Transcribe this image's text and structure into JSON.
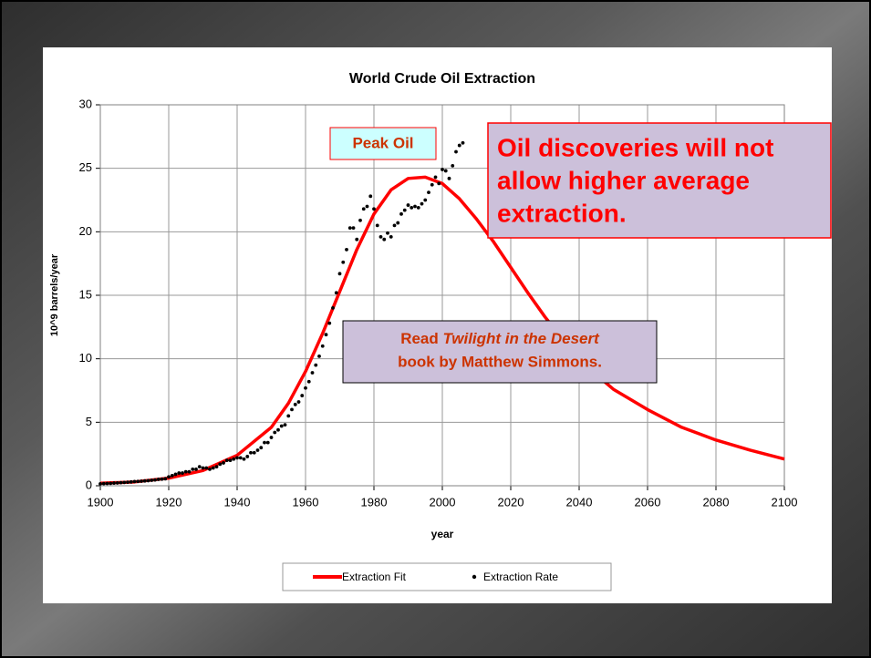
{
  "chart_data": {
    "type": "line_scatter",
    "title": "World Crude Oil Extraction",
    "xlabel": "year",
    "ylabel": "10^9 barrels/year",
    "xlim": [
      1900,
      2100
    ],
    "ylim": [
      0,
      30
    ],
    "xticks": [
      1900,
      1920,
      1940,
      1960,
      1980,
      2000,
      2020,
      2040,
      2060,
      2080,
      2100
    ],
    "yticks": [
      0,
      5,
      10,
      15,
      20,
      25,
      30
    ],
    "grid": true,
    "legend": "bottom",
    "series": [
      {
        "name": "Extraction Fit",
        "kind": "line",
        "color": "#ff0000",
        "x": [
          1900,
          1910,
          1920,
          1930,
          1940,
          1950,
          1955,
          1960,
          1965,
          1970,
          1975,
          1980,
          1985,
          1990,
          1995,
          2000,
          2005,
          2010,
          2015,
          2020,
          2025,
          2030,
          2040,
          2050,
          2060,
          2070,
          2080,
          2090,
          2100
        ],
        "values": [
          0.2,
          0.3,
          0.6,
          1.2,
          2.4,
          4.6,
          6.5,
          9.0,
          12.0,
          15.3,
          18.6,
          21.4,
          23.3,
          24.2,
          24.3,
          23.8,
          22.6,
          21.0,
          19.2,
          17.2,
          15.2,
          13.3,
          9.9,
          7.6,
          6.0,
          4.6,
          3.6,
          2.8,
          2.1
        ]
      },
      {
        "name": "Extraction Rate",
        "kind": "scatter",
        "color": "#000000",
        "x": [
          1900,
          1901,
          1902,
          1903,
          1904,
          1905,
          1906,
          1907,
          1908,
          1909,
          1910,
          1911,
          1912,
          1913,
          1914,
          1915,
          1916,
          1917,
          1918,
          1919,
          1920,
          1921,
          1922,
          1923,
          1924,
          1925,
          1926,
          1927,
          1928,
          1929,
          1930,
          1931,
          1932,
          1933,
          1934,
          1935,
          1936,
          1937,
          1938,
          1939,
          1940,
          1941,
          1942,
          1943,
          1944,
          1945,
          1946,
          1947,
          1948,
          1949,
          1950,
          1951,
          1952,
          1953,
          1954,
          1955,
          1956,
          1957,
          1958,
          1959,
          1960,
          1961,
          1962,
          1963,
          1964,
          1965,
          1966,
          1967,
          1968,
          1969,
          1970,
          1971,
          1972,
          1973,
          1974,
          1975,
          1976,
          1977,
          1978,
          1979,
          1980,
          1981,
          1982,
          1983,
          1984,
          1985,
          1986,
          1987,
          1988,
          1989,
          1990,
          1991,
          1992,
          1993,
          1994,
          1995,
          1996,
          1997,
          1998,
          1999,
          2000,
          2001,
          2002,
          2003,
          2004,
          2005,
          2006
        ],
        "values": [
          0.15,
          0.17,
          0.18,
          0.19,
          0.21,
          0.22,
          0.24,
          0.26,
          0.28,
          0.3,
          0.33,
          0.34,
          0.36,
          0.38,
          0.4,
          0.43,
          0.46,
          0.5,
          0.52,
          0.55,
          0.7,
          0.8,
          0.9,
          1.0,
          1.0,
          1.1,
          1.1,
          1.3,
          1.3,
          1.5,
          1.4,
          1.4,
          1.3,
          1.4,
          1.5,
          1.7,
          1.8,
          2.0,
          2.0,
          2.1,
          2.2,
          2.2,
          2.1,
          2.3,
          2.6,
          2.6,
          2.8,
          3.0,
          3.4,
          3.4,
          3.8,
          4.2,
          4.4,
          4.7,
          4.8,
          5.5,
          6.0,
          6.4,
          6.6,
          7.1,
          7.7,
          8.2,
          8.9,
          9.5,
          10.2,
          11.0,
          11.9,
          12.8,
          14.0,
          15.2,
          16.7,
          17.6,
          18.6,
          20.3,
          20.3,
          19.4,
          20.9,
          21.8,
          22.0,
          22.8,
          21.8,
          20.5,
          19.6,
          19.4,
          19.9,
          19.6,
          20.5,
          20.7,
          21.4,
          21.7,
          22.1,
          21.9,
          22.0,
          21.9,
          22.2,
          22.5,
          23.1,
          23.7,
          24.3,
          23.8,
          24.9,
          24.8,
          24.2,
          25.2,
          26.3,
          26.8,
          27.0
        ]
      }
    ],
    "annotations": {
      "peak": "Peak Oil",
      "discoveries": [
        "Oil discoveries will not",
        "allow higher average",
        "extraction."
      ],
      "book": {
        "line1": [
          "Read ",
          "Twilight in the Desert"
        ],
        "line2": "book by Matthew Simmons."
      }
    }
  }
}
